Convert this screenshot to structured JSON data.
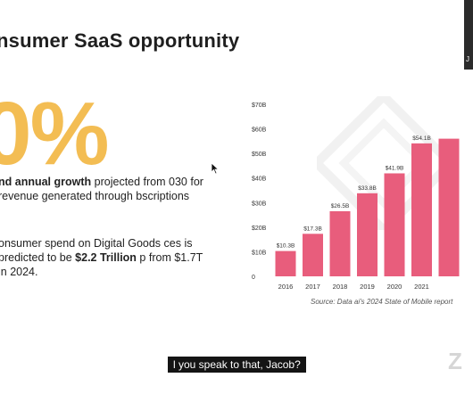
{
  "slide": {
    "title": "nsumer SaaS opportunity",
    "big_stat": "0%",
    "bullet1": {
      "bold_lead": "nd annual growth",
      "rest": " projected from 030 for revenue generated through bscriptions"
    },
    "bullet2": {
      "prefix": "onsumer spend on Digital Goods ces is predicted to be ",
      "bold": "$2.2 Trillion",
      "suffix": " p from $1.7T in 2024."
    },
    "source": "Source: Data ai's 2024 State of Mobile report"
  },
  "colors": {
    "accent_yellow": "#f3bd53",
    "bar_pink": "#e85d7c"
  },
  "chart_data": {
    "type": "bar",
    "categories": [
      "2016",
      "2017",
      "2018",
      "2019",
      "2020",
      "2021",
      ""
    ],
    "values": [
      10.3,
      17.3,
      26.5,
      33.8,
      41.9,
      54.1,
      56
    ],
    "data_labels": [
      "$10.3B",
      "$17.3B",
      "$26.5B",
      "$33.8B",
      "$41.9B",
      "$54.1B",
      ""
    ],
    "y_ticks": [
      "0",
      "$10B",
      "$20B",
      "$30B",
      "$40B",
      "$50B",
      "$60B",
      "$70B"
    ],
    "y_tick_values": [
      0,
      10,
      20,
      30,
      40,
      50,
      60,
      70
    ],
    "ylim": [
      0,
      70
    ],
    "title": "",
    "xlabel": "",
    "ylabel": "",
    "grid": false
  },
  "overlay": {
    "caption": "l you speak to that, Jacob?",
    "webcam_label": "J",
    "zoom_mark": "Z"
  }
}
